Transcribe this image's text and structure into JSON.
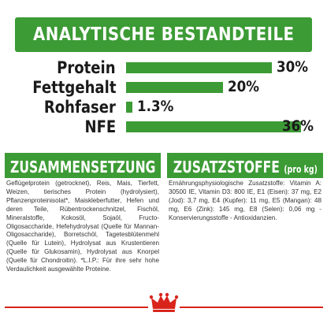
{
  "header": {
    "title": "ANALYTISCHE BESTANDTEILE"
  },
  "analysis": {
    "rows": [
      {
        "label": "Protein",
        "value": "30%",
        "percent": 30
      },
      {
        "label": "Fettgehalt",
        "value": "20%",
        "percent": 20
      },
      {
        "label": "Rohfaser",
        "value": "1.3%",
        "percent": 1.3
      },
      {
        "label": "NFE",
        "value": "36%",
        "percent": 36
      }
    ]
  },
  "composition": {
    "title": "ZUSAMMENSETZUNG",
    "text": "Geflügelprotein (getrocknet), Reis, Mais, Tierfett, Weizen, tierisches Protein (hydrolysiert), Pflanzenproteinisolat*, Maiskleberfutter, Hefen und deren Teile, Rübentrockenschnitzel, Fischöl, Mineralstoffe, Kokosöl, Sojaöl, Fructo-Oligosaccharide, Hefehydrolysat (Quelle für Mannan-Oligosaccharide), Borretschöl, Tagetesblütenmehl (Quelle für Lutein), Hydrolysat aus Krustentieren (Quelle für Glukosamin), Hydrolysat aus Knorpel (Quelle für Chondroitin). *L.I.P.: Für ihre sehr hohe Verdaulichkeit ausgewählte Proteine."
  },
  "additives": {
    "title": "ZUSATZSTOFFE",
    "subtitle": "(pro kg)",
    "text": "Ernährungsphysiologische Zusatzstoffe: Vitamin A: 30500 IE, Vitamin D3: 800 IE, E1 (Eisen): 37 mg, E2 (Jod): 3,7 mg, E4 (Kupfer): 11 mg, E5 (Mangan): 48 mg, E6 (Zink): 145 mg, E8 (Selen): 0,06 mg - Konservierungsstoffe - Antioxidanzien."
  },
  "colors": {
    "brand_green": "#3c9b35",
    "brand_red": "#d9241b"
  },
  "footer": {
    "logo_icon": "crown-icon"
  }
}
